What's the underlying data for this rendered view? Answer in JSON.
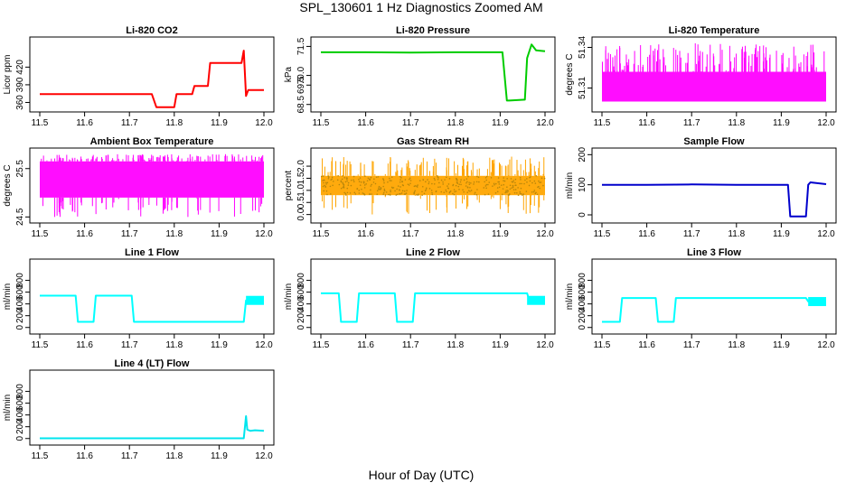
{
  "title": "SPL_130601  1 Hz Diagnostics Zoomed AM",
  "xlabel": "Hour of Day (UTC)",
  "colors": {
    "co2": "#ff0000",
    "pressure": "#00cc00",
    "temperature": "#ff00ff",
    "rh": "#ffa500",
    "rh_points": "#b8860b",
    "sample_flow": "#0000cc",
    "line_flow": "#00ffff",
    "line4_flow": "#00e5ee"
  },
  "chart_data": [
    {
      "id": "co2",
      "type": "line",
      "title": "Li-820 CO2",
      "ylabel": "Licor ppm",
      "xlim": [
        11.5,
        12.0
      ],
      "xticks": [
        "11.5",
        "11.6",
        "11.7",
        "11.8",
        "11.9",
        "12.0"
      ],
      "ylim": [
        350,
        465
      ],
      "yticks": [
        "360",
        "390",
        "420"
      ],
      "series": [
        {
          "style": "line",
          "color": "co2",
          "x": [
            11.5,
            11.75,
            11.76,
            11.8,
            11.805,
            11.84,
            11.845,
            11.875,
            11.88,
            11.95,
            11.955,
            11.96,
            11.965,
            12.0
          ],
          "y": [
            374,
            374,
            352,
            352,
            374,
            374,
            388,
            388,
            427,
            427,
            448,
            371,
            381,
            381
          ]
        }
      ]
    },
    {
      "id": "pressure",
      "type": "line",
      "title": "Li-820 Pressure",
      "ylabel": "kPa",
      "xlim": [
        11.5,
        12.0
      ],
      "xticks": [
        "11.5",
        "11.6",
        "11.7",
        "11.8",
        "11.9",
        "12.0"
      ],
      "ylim": [
        68.3,
        71.8
      ],
      "yticks": [
        "68.5",
        "69.5",
        "70.0",
        "71.5"
      ],
      "series": [
        {
          "style": "line",
          "color": "pressure",
          "x": [
            11.5,
            11.6,
            11.7,
            11.8,
            11.905,
            11.915,
            11.92,
            11.955,
            11.96,
            11.97,
            11.98,
            12.0
          ],
          "y": [
            71.2,
            71.2,
            71.18,
            71.2,
            71.2,
            68.7,
            68.7,
            68.75,
            70.9,
            71.6,
            71.3,
            71.25
          ]
        }
      ]
    },
    {
      "id": "li820_temp",
      "type": "line",
      "title": "Li-820 Temperature",
      "ylabel": "degrees C",
      "xlim": [
        11.5,
        12.0
      ],
      "xticks": [
        "11.5",
        "11.6",
        "11.7",
        "11.8",
        "11.9",
        "12.0"
      ],
      "ylim": [
        51.295,
        51.345
      ],
      "yticks": [
        "51.31",
        "51.34"
      ],
      "series": [
        {
          "style": "band",
          "color": "temperature",
          "x": [
            11.5,
            12.0
          ],
          "lower": 51.3,
          "upper": 51.322,
          "spike_max": 51.343,
          "spikes": 140,
          "seed": 3
        }
      ]
    },
    {
      "id": "ambient_box_temp",
      "type": "line",
      "title": "Ambient Box Temperature",
      "ylabel": "degrees C",
      "xlim": [
        11.5,
        12.0
      ],
      "xticks": [
        "11.5",
        "11.6",
        "11.7",
        "11.8",
        "11.9",
        "12.0"
      ],
      "ylim": [
        24.45,
        25.85
      ],
      "yticks": [
        "24.5",
        "25.5"
      ],
      "series": [
        {
          "style": "band",
          "color": "temperature",
          "x": [
            11.5,
            12.0
          ],
          "lower": 24.9,
          "upper": 25.65,
          "spike_max": 25.8,
          "spike_min": 24.5,
          "spikes": 160,
          "seed": 7
        }
      ]
    },
    {
      "id": "gas_stream_rh",
      "type": "scatter",
      "title": "Gas Stream RH",
      "ylabel": "percent",
      "xlim": [
        11.5,
        12.0
      ],
      "xticks": [
        "11.5",
        "11.6",
        "11.7",
        "11.8",
        "11.9",
        "12.0"
      ],
      "ylim": [
        -0.2,
        2.6
      ],
      "yticks": [
        "0.0",
        "0.5",
        "1.0",
        "1.5",
        "2.0"
      ],
      "series": [
        {
          "style": "band",
          "color": "rh",
          "x": [
            11.5,
            12.0
          ],
          "lower": 0.8,
          "upper": 1.6,
          "spike_max": 2.4,
          "spike_min": 0.0,
          "spikes": 120,
          "seed": 11
        }
      ]
    },
    {
      "id": "sample_flow",
      "type": "line",
      "title": "Sample Flow",
      "ylabel": "ml/min",
      "xlim": [
        11.5,
        12.0
      ],
      "xticks": [
        "11.5",
        "11.6",
        "11.7",
        "11.8",
        "11.9",
        "12.0"
      ],
      "ylim": [
        -15,
        210
      ],
      "yticks": [
        "0",
        "100",
        "200"
      ],
      "series": [
        {
          "style": "line",
          "color": "sample_flow",
          "x": [
            11.5,
            11.6,
            11.7,
            11.8,
            11.915,
            11.92,
            11.955,
            11.96,
            11.965,
            12.0
          ],
          "y": [
            100,
            100,
            101,
            100,
            100,
            -5,
            -5,
            100,
            108,
            102
          ]
        }
      ]
    },
    {
      "id": "line1_flow",
      "type": "line",
      "title": "Line 1 Flow",
      "ylabel": "ml/min",
      "xlim": [
        11.5,
        12.0
      ],
      "xticks": [
        "11.5",
        "11.6",
        "11.7",
        "11.8",
        "11.9",
        "12.0"
      ],
      "ylim": [
        -50,
        1100
      ],
      "yticks": [
        "0",
        "200",
        "400",
        "600",
        "800"
      ],
      "series": [
        {
          "style": "line",
          "color": "line_flow",
          "x": [
            11.5,
            11.58,
            11.585,
            11.62,
            11.625,
            11.705,
            11.71,
            11.955,
            11.96,
            12.0
          ],
          "y": [
            540,
            540,
            95,
            95,
            540,
            540,
            95,
            95,
            460,
            460
          ],
          "thick_from": 11.96
        }
      ]
    },
    {
      "id": "line2_flow",
      "type": "line",
      "title": "Line 2 Flow",
      "ylabel": "ml/min",
      "xlim": [
        11.5,
        12.0
      ],
      "xticks": [
        "11.5",
        "11.6",
        "11.7",
        "11.8",
        "11.9",
        "12.0"
      ],
      "ylim": [
        -50,
        1100
      ],
      "yticks": [
        "0",
        "200",
        "400",
        "600",
        "800"
      ],
      "series": [
        {
          "style": "line",
          "color": "line_flow",
          "x": [
            11.5,
            11.54,
            11.545,
            11.58,
            11.585,
            11.665,
            11.67,
            11.705,
            11.71,
            11.96,
            11.965,
            12.0
          ],
          "y": [
            580,
            580,
            95,
            95,
            580,
            580,
            95,
            95,
            580,
            580,
            460,
            460
          ],
          "thick_from": 11.96
        }
      ]
    },
    {
      "id": "line3_flow",
      "type": "line",
      "title": "Line 3 Flow",
      "ylabel": "ml/min",
      "xlim": [
        11.5,
        12.0
      ],
      "xticks": [
        "11.5",
        "11.6",
        "11.7",
        "11.8",
        "11.9",
        "12.0"
      ],
      "ylim": [
        -50,
        1100
      ],
      "yticks": [
        "0",
        "200",
        "400",
        "600",
        "800"
      ],
      "series": [
        {
          "style": "line",
          "color": "line_flow",
          "x": [
            11.5,
            11.54,
            11.545,
            11.62,
            11.625,
            11.66,
            11.665,
            11.955,
            11.96,
            12.0
          ],
          "y": [
            95,
            95,
            500,
            500,
            95,
            95,
            500,
            500,
            440,
            440
          ],
          "thick_from": 11.96
        }
      ]
    },
    {
      "id": "line4_flow",
      "type": "line",
      "title": "Line 4 (LT) Flow",
      "ylabel": "ml/min",
      "xlim": [
        11.5,
        12.0
      ],
      "xticks": [
        "11.5",
        "11.6",
        "11.7",
        "11.8",
        "11.9",
        "12.0"
      ],
      "ylim": [
        -50,
        1100
      ],
      "yticks": [
        "0",
        "200",
        "400",
        "600",
        "800"
      ],
      "series": [
        {
          "style": "line",
          "color": "line4_flow",
          "x": [
            11.5,
            11.955,
            11.96,
            11.963,
            11.97,
            11.98,
            12.0
          ],
          "y": [
            3,
            3,
            380,
            150,
            130,
            140,
            130
          ]
        }
      ]
    }
  ]
}
